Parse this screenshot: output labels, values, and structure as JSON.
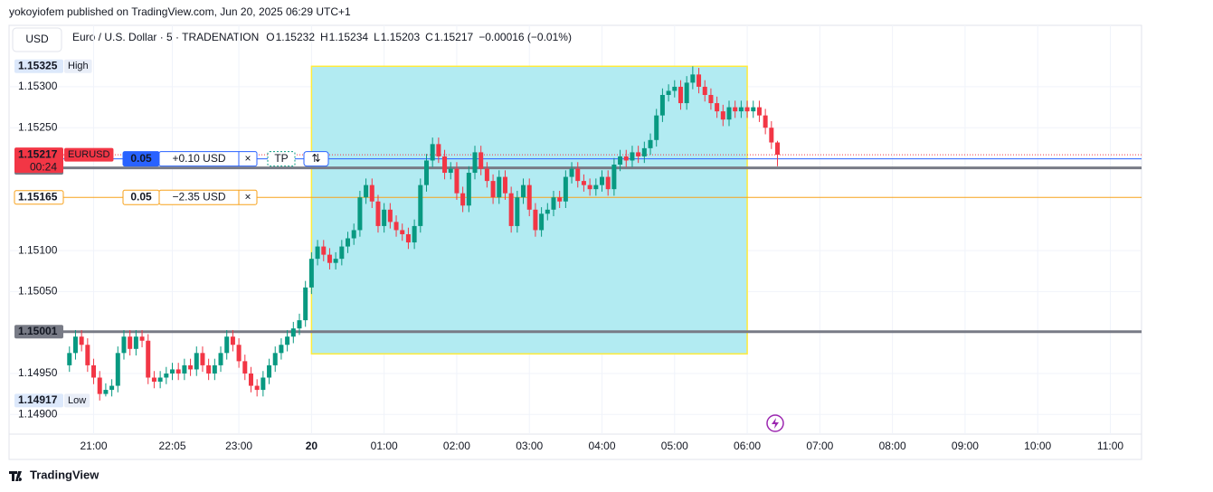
{
  "header": {
    "publisher": "yokoyiofem published on TradingView.com, Jun 20, 2025 06:29 UTC+1",
    "currency": "USD",
    "symbol": "Euro / U.S. Dollar · 5 · TRADENATION",
    "ohlc": [
      {
        "label": "O",
        "value": "1.15232"
      },
      {
        "label": "H",
        "value": "1.15234"
      },
      {
        "label": "L",
        "value": "1.15203"
      },
      {
        "label": "C",
        "value": "1.15217"
      }
    ],
    "change": "−0.00016 (−0.01%)"
  },
  "footer": {
    "logo": "TradingView"
  },
  "chart_data": {
    "type": "candlestick",
    "up_color": "#089981",
    "down_color": "#f23645",
    "grid": true,
    "xlim": [
      19.835,
      35.43
    ],
    "ylim": [
      1.14876,
      1.15375
    ],
    "xticks": [
      {
        "value": 21,
        "label": "21:00"
      },
      {
        "value": 22.0833,
        "label": "22:05"
      },
      {
        "value": 23,
        "label": "23:00"
      },
      {
        "value": 24,
        "label": "20"
      },
      {
        "value": 25,
        "label": "01:00"
      },
      {
        "value": 26,
        "label": "02:00"
      },
      {
        "value": 27,
        "label": "03:00"
      },
      {
        "value": 28,
        "label": "04:00"
      },
      {
        "value": 29,
        "label": "05:00"
      },
      {
        "value": 30,
        "label": "06:00"
      },
      {
        "value": 31,
        "label": "07:00"
      },
      {
        "value": 32,
        "label": "08:00"
      },
      {
        "value": 33,
        "label": "09:00"
      },
      {
        "value": 34,
        "label": "10:00"
      },
      {
        "value": 35,
        "label": "11:00"
      }
    ],
    "yticks": [
      {
        "value": 1.153,
        "label": "1.15300"
      },
      {
        "value": 1.1525,
        "label": "1.15250"
      },
      {
        "value": 1.151,
        "label": "1.15100"
      },
      {
        "value": 1.1505,
        "label": "1.15050"
      },
      {
        "value": 1.1495,
        "label": "1.14950"
      },
      {
        "value": 1.149,
        "label": "1.14900"
      }
    ],
    "range_box": {
      "x": [
        24,
        30
      ],
      "y": [
        1.15325,
        1.14974
      ]
    },
    "x": [
      20.6667,
      20.75,
      20.8333,
      20.9167,
      21,
      21.0833,
      21.1667,
      21.25,
      21.3333,
      21.4167,
      21.5,
      21.5833,
      21.6667,
      21.75,
      21.8333,
      21.9167,
      22,
      22.0833,
      22.1667,
      22.25,
      22.3333,
      22.4167,
      22.5,
      22.5833,
      22.6667,
      22.75,
      22.8333,
      22.9167,
      23,
      23.0833,
      23.1667,
      23.25,
      23.3333,
      23.4167,
      23.5,
      23.5833,
      23.6667,
      23.75,
      23.8333,
      23.9167,
      24,
      24.0833,
      24.1667,
      24.25,
      24.3333,
      24.4167,
      24.5,
      24.5833,
      24.6667,
      24.75,
      24.8333,
      24.9167,
      25,
      25.0833,
      25.1667,
      25.25,
      25.3333,
      25.4167,
      25.5,
      25.5833,
      25.6667,
      25.75,
      25.8333,
      25.9167,
      26,
      26.0833,
      26.1667,
      26.25,
      26.3333,
      26.4167,
      26.5,
      26.5833,
      26.6667,
      26.75,
      26.8333,
      26.9167,
      27,
      27.0833,
      27.1667,
      27.25,
      27.3333,
      27.4167,
      27.5,
      27.5833,
      27.6667,
      27.75,
      27.8333,
      27.9167,
      28,
      28.0833,
      28.1667,
      28.25,
      28.3333,
      28.4167,
      28.5,
      28.5833,
      28.6667,
      28.75,
      28.8333,
      28.9167,
      29,
      29.0833,
      29.1667,
      29.25,
      29.3333,
      29.4167,
      29.5,
      29.5833,
      29.6667,
      29.75,
      29.8333,
      29.9167,
      30,
      30.0833,
      30.1667,
      30.25,
      30.3333,
      30.4167
    ],
    "open": [
      1.1496,
      1.14975,
      1.14995,
      1.14985,
      1.1496,
      1.14945,
      1.14925,
      1.1493,
      1.14935,
      1.14975,
      1.14995,
      1.1498,
      1.14995,
      1.1499,
      1.14945,
      1.1494,
      1.14945,
      1.1495,
      1.14955,
      1.1495,
      1.1496,
      1.14955,
      1.14975,
      1.1496,
      1.1495,
      1.1496,
      1.14975,
      1.14995,
      1.14985,
      1.14965,
      1.1495,
      1.14935,
      1.1493,
      1.14945,
      1.1496,
      1.14975,
      1.14985,
      1.14995,
      1.15005,
      1.15015,
      1.15055,
      1.1509,
      1.15105,
      1.15095,
      1.15085,
      1.1509,
      1.15105,
      1.15115,
      1.15125,
      1.15165,
      1.1518,
      1.1516,
      1.1513,
      1.1515,
      1.15135,
      1.15125,
      1.1512,
      1.1511,
      1.1513,
      1.1518,
      1.1521,
      1.1523,
      1.15215,
      1.15195,
      1.152,
      1.1517,
      1.15155,
      1.15195,
      1.1522,
      1.152,
      1.15185,
      1.15165,
      1.1519,
      1.1517,
      1.1513,
      1.15165,
      1.1518,
      1.1515,
      1.15125,
      1.15145,
      1.1515,
      1.15165,
      1.1516,
      1.1519,
      1.152,
      1.15185,
      1.1518,
      1.15175,
      1.1518,
      1.1519,
      1.15175,
      1.15205,
      1.15215,
      1.1521,
      1.1522,
      1.15215,
      1.15225,
      1.15235,
      1.15265,
      1.1529,
      1.15295,
      1.153,
      1.1528,
      1.15305,
      1.15315,
      1.153,
      1.1529,
      1.1528,
      1.1527,
      1.1526,
      1.15275,
      1.1527,
      1.15275,
      1.1527,
      1.15275,
      1.15265,
      1.1525,
      1.15232
    ],
    "high": [
      1.14983,
      1.15003,
      1.15003,
      1.14993,
      1.14968,
      1.14953,
      1.14938,
      1.14943,
      1.14983,
      1.15003,
      1.15003,
      1.15003,
      1.15003,
      1.14998,
      1.14953,
      1.14953,
      1.14958,
      1.14963,
      1.14963,
      1.14968,
      1.14968,
      1.14983,
      1.14983,
      1.14968,
      1.14968,
      1.14983,
      1.15003,
      1.15003,
      1.14993,
      1.14973,
      1.14958,
      1.14943,
      1.14953,
      1.14968,
      1.14983,
      1.14993,
      1.15003,
      1.15013,
      1.15023,
      1.15063,
      1.15098,
      1.15113,
      1.15113,
      1.15103,
      1.15098,
      1.15113,
      1.15123,
      1.15133,
      1.15173,
      1.15188,
      1.15188,
      1.15168,
      1.15158,
      1.15158,
      1.15143,
      1.15133,
      1.15128,
      1.15138,
      1.15188,
      1.15218,
      1.15238,
      1.15238,
      1.15223,
      1.15208,
      1.15208,
      1.15178,
      1.15203,
      1.15228,
      1.15228,
      1.15208,
      1.15193,
      1.15198,
      1.15198,
      1.15178,
      1.15173,
      1.15188,
      1.15188,
      1.15158,
      1.15153,
      1.15158,
      1.15173,
      1.15173,
      1.15198,
      1.15208,
      1.15208,
      1.15193,
      1.15188,
      1.15188,
      1.15198,
      1.15198,
      1.15213,
      1.15223,
      1.15223,
      1.15228,
      1.15228,
      1.15233,
      1.15243,
      1.15273,
      1.15298,
      1.15303,
      1.15308,
      1.15308,
      1.15313,
      1.15325,
      1.15323,
      1.15308,
      1.15298,
      1.15288,
      1.15278,
      1.15283,
      1.15283,
      1.15283,
      1.15283,
      1.15283,
      1.15283,
      1.15273,
      1.15258,
      1.15234
    ],
    "low": [
      1.14952,
      1.14967,
      1.14977,
      1.14952,
      1.14937,
      1.14917,
      1.14922,
      1.14922,
      1.14927,
      1.14967,
      1.14972,
      1.14972,
      1.14982,
      1.14937,
      1.14932,
      1.14932,
      1.14937,
      1.14942,
      1.14942,
      1.14942,
      1.14947,
      1.14947,
      1.14952,
      1.14942,
      1.14942,
      1.14952,
      1.14967,
      1.14977,
      1.14957,
      1.14942,
      1.14927,
      1.14922,
      1.14922,
      1.14937,
      1.14952,
      1.14967,
      1.14977,
      1.14987,
      1.14997,
      1.15007,
      1.15047,
      1.15082,
      1.15087,
      1.15077,
      1.15077,
      1.15082,
      1.15097,
      1.15107,
      1.15117,
      1.15157,
      1.15152,
      1.15122,
      1.15122,
      1.15127,
      1.15117,
      1.15112,
      1.15102,
      1.15102,
      1.15122,
      1.15172,
      1.15202,
      1.15207,
      1.15187,
      1.15187,
      1.15162,
      1.15147,
      1.15147,
      1.15187,
      1.15192,
      1.15177,
      1.15157,
      1.15157,
      1.15162,
      1.15122,
      1.15122,
      1.15157,
      1.15142,
      1.15117,
      1.15117,
      1.15137,
      1.15142,
      1.15152,
      1.15152,
      1.15182,
      1.15177,
      1.15172,
      1.15167,
      1.15167,
      1.15172,
      1.15167,
      1.15167,
      1.15197,
      1.15202,
      1.15202,
      1.15207,
      1.15207,
      1.15217,
      1.15227,
      1.15257,
      1.15282,
      1.15287,
      1.15272,
      1.15272,
      1.15297,
      1.15292,
      1.15282,
      1.15272,
      1.15262,
      1.15252,
      1.15252,
      1.15262,
      1.15262,
      1.15262,
      1.15262,
      1.15257,
      1.15242,
      1.15224,
      1.15203
    ],
    "close": [
      1.14975,
      1.14995,
      1.14985,
      1.1496,
      1.14945,
      1.14925,
      1.1493,
      1.14935,
      1.14975,
      1.14995,
      1.1498,
      1.14995,
      1.1499,
      1.14945,
      1.1494,
      1.14945,
      1.1495,
      1.14955,
      1.1495,
      1.1496,
      1.14955,
      1.14975,
      1.1496,
      1.1495,
      1.1496,
      1.14975,
      1.14995,
      1.14985,
      1.14965,
      1.1495,
      1.14935,
      1.1493,
      1.14945,
      1.1496,
      1.14975,
      1.14985,
      1.14995,
      1.15005,
      1.15015,
      1.15055,
      1.1509,
      1.15105,
      1.15095,
      1.15085,
      1.1509,
      1.15105,
      1.15115,
      1.15125,
      1.15165,
      1.1518,
      1.1516,
      1.1513,
      1.1515,
      1.15135,
      1.15125,
      1.1512,
      1.1511,
      1.1513,
      1.1518,
      1.1521,
      1.1523,
      1.15215,
      1.15195,
      1.152,
      1.1517,
      1.15155,
      1.15195,
      1.1522,
      1.152,
      1.15185,
      1.15165,
      1.1519,
      1.1517,
      1.1513,
      1.15165,
      1.1518,
      1.1515,
      1.15125,
      1.15145,
      1.1515,
      1.15165,
      1.1516,
      1.1519,
      1.152,
      1.15185,
      1.1518,
      1.15175,
      1.1518,
      1.1519,
      1.15175,
      1.15205,
      1.15215,
      1.1521,
      1.1522,
      1.15215,
      1.15225,
      1.15235,
      1.15265,
      1.1529,
      1.15295,
      1.153,
      1.1528,
      1.15305,
      1.15315,
      1.153,
      1.1529,
      1.1528,
      1.1527,
      1.1526,
      1.15275,
      1.1527,
      1.15275,
      1.1527,
      1.15275,
      1.15265,
      1.1525,
      1.15232,
      1.15217
    ],
    "price_labels": [
      {
        "value": 1.15325,
        "bg": "#dce8fb",
        "fg": "#131722",
        "tag": "High",
        "tag_bg": "#e9eef8"
      },
      {
        "value": 1.14917,
        "bg": "#dce8fb",
        "fg": "#131722",
        "tag": "Low",
        "tag_bg": "#e9eef8"
      },
      {
        "value": 1.15001,
        "bg": "#787b86",
        "fg": "#ffffff",
        "line": {
          "color": "#787b86",
          "width": 3
        }
      },
      {
        "value": 1.15165,
        "bg": "#ffffff",
        "fg": "#f7a21b",
        "border": "#f7a21b",
        "line": {
          "color": "#f7a21b",
          "width": 1
        },
        "order": {
          "qty": "0.05",
          "pnl": "−2.35 USD",
          "close": "×",
          "color": "#f7a21b",
          "filled": false
        }
      },
      {
        "value": 1.15201,
        "bg": "#787b86",
        "fg": "#ffffff",
        "line": {
          "color": "#787b86",
          "width": 3
        }
      },
      {
        "value": 1.15212,
        "bg": "#2962ff",
        "fg": "#ffffff",
        "line": {
          "color": "#2962ff",
          "width": 1
        },
        "order": {
          "qty": "0.05",
          "pnl": "+0.10 USD",
          "close": "×",
          "tp": "TP",
          "reverse": "⇅",
          "color": "#2962ff",
          "filled": true
        }
      },
      {
        "value": 1.15217,
        "bg": "#f23645",
        "fg": "#ffffff",
        "tag": "EURUSD",
        "tag_bg": "#f23645",
        "sub": "00:24",
        "line": {
          "color": "#f23645",
          "width": 1,
          "dash": "1 2"
        }
      }
    ]
  }
}
